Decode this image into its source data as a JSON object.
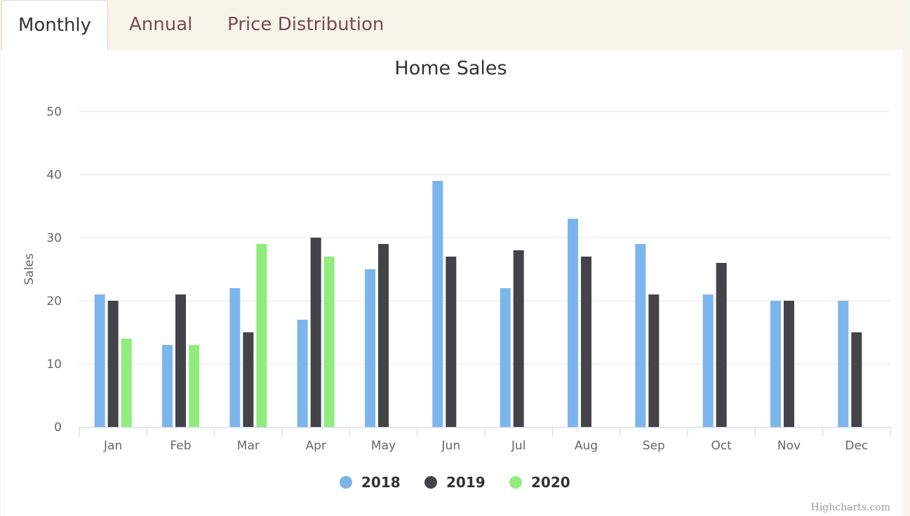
{
  "tabs": [
    {
      "label": "Monthly",
      "active": true
    },
    {
      "label": "Annual",
      "active": false
    },
    {
      "label": "Price Distribution",
      "active": false
    }
  ],
  "credits": "Highcharts.com",
  "chart_data": {
    "type": "bar",
    "title": "Home Sales",
    "xlabel": "",
    "ylabel": "Sales",
    "ylim": [
      0,
      50
    ],
    "yticks": [
      0,
      10,
      20,
      30,
      40,
      50
    ],
    "grid": true,
    "legend_position": "bottom-center",
    "categories": [
      "Jan",
      "Feb",
      "Mar",
      "Apr",
      "May",
      "Jun",
      "Jul",
      "Aug",
      "Sep",
      "Oct",
      "Nov",
      "Dec"
    ],
    "series": [
      {
        "name": "2018",
        "color": "#7cb5ec",
        "values": [
          21,
          13,
          22,
          17,
          25,
          39,
          22,
          33,
          29,
          21,
          20,
          20
        ]
      },
      {
        "name": "2019",
        "color": "#434348",
        "values": [
          20,
          21,
          15,
          30,
          29,
          27,
          28,
          27,
          21,
          26,
          20,
          15
        ]
      },
      {
        "name": "2020",
        "color": "#90ed7d",
        "values": [
          14,
          13,
          29,
          27,
          null,
          null,
          null,
          null,
          null,
          null,
          null,
          null
        ]
      }
    ]
  }
}
